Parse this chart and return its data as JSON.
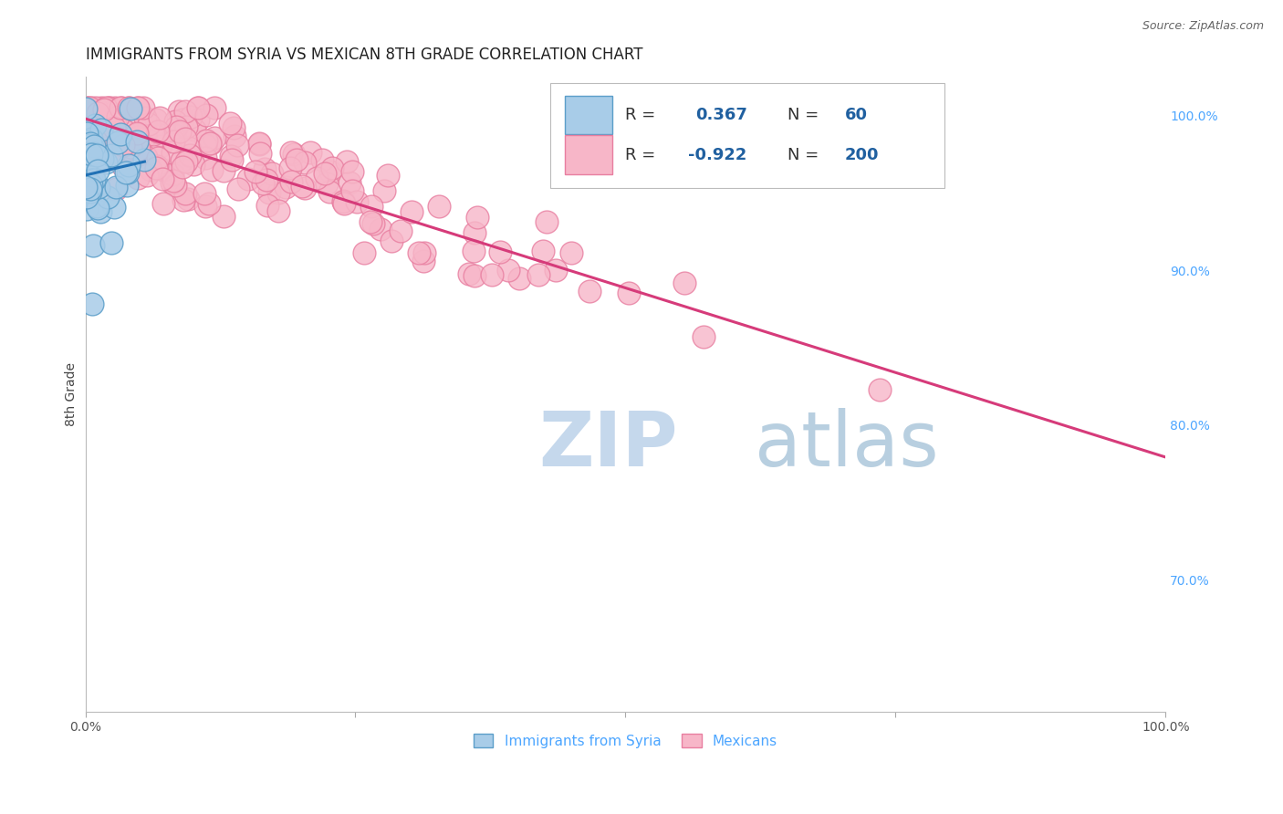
{
  "title": "IMMIGRANTS FROM SYRIA VS MEXICAN 8TH GRADE CORRELATION CHART",
  "source_text": "Source: ZipAtlas.com",
  "ylabel": "8th Grade",
  "watermark_zip": "ZIP",
  "watermark_atlas": "atlas",
  "xlim": [
    0.0,
    1.0
  ],
  "ylim": [
    0.615,
    1.025
  ],
  "right_yticks": [
    0.7,
    0.8,
    0.9,
    1.0
  ],
  "right_yticklabels": [
    "70.0%",
    "80.0%",
    "90.0%",
    "100.0%"
  ],
  "syria_R": 0.367,
  "syria_N": 60,
  "mexico_R": -0.922,
  "mexico_N": 200,
  "syria_dot_fill": "#a8cce8",
  "syria_dot_edge": "#5b9ec9",
  "mexico_dot_fill": "#f7b6c8",
  "mexico_dot_edge": "#e87ea0",
  "syria_line_color": "#2171b5",
  "mexico_line_color": "#d63b7a",
  "legend_R_color": "#2060a0",
  "legend_N_color": "#2060a0",
  "background_color": "#ffffff",
  "grid_color": "#cccccc",
  "title_color": "#222222",
  "watermark_zip_color": "#c5d8ec",
  "watermark_atlas_color": "#b8cfe0",
  "right_tick_color": "#4da6ff",
  "title_fontsize": 12,
  "axis_label_fontsize": 10,
  "tick_fontsize": 10,
  "legend_fontsize": 13,
  "source_fontsize": 9
}
